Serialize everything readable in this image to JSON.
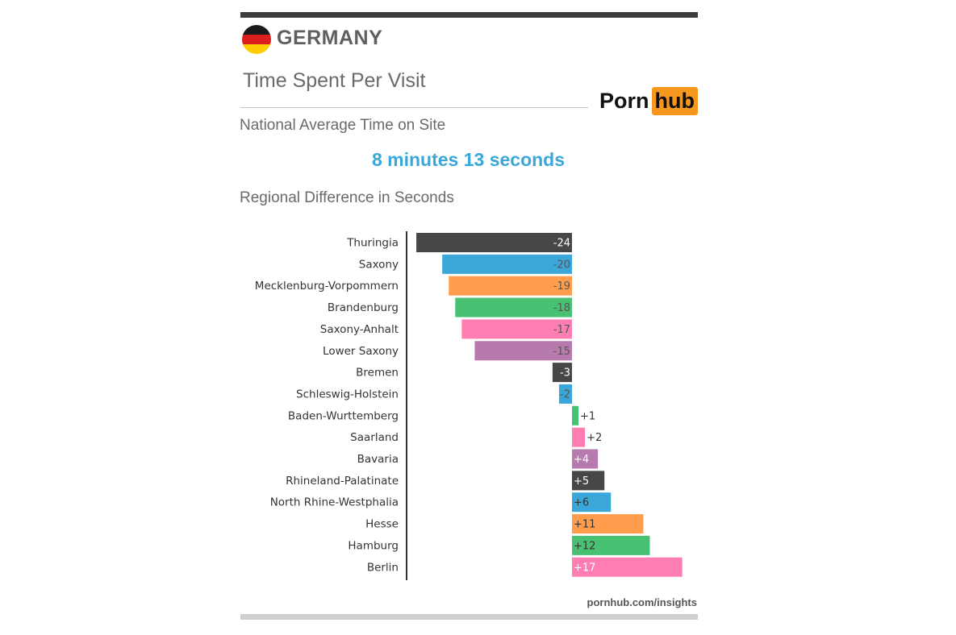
{
  "header": {
    "country": "GERMANY",
    "subtitle": "Time Spent Per Visit"
  },
  "logo": {
    "part1": "Porn",
    "part2": "hub"
  },
  "national": {
    "label": "National Average Time on Site",
    "value": "8 minutes 13 seconds"
  },
  "regional_label": "Regional Difference in Seconds",
  "footer": "pornhub.com/insights",
  "colors": {
    "flag": [
      "#1a1a1a",
      "#dd1e1e",
      "#ffce00"
    ],
    "dark": "#474747",
    "blue": "#3aa7d8",
    "orange": "#ff9d4d",
    "green": "#48c173",
    "pink": "#ff7eb2",
    "purple": "#b77aae"
  },
  "chart_data": {
    "type": "bar",
    "orientation": "horizontal",
    "categories": [
      "Thuringia",
      "Saxony",
      "Mecklenburg-Vorpommern",
      "Brandenburg",
      "Saxony-Anhalt",
      "Lower Saxony",
      "Bremen",
      "Schleswig-Holstein",
      "Baden-Wurttemberg",
      "Saarland",
      "Bavaria",
      "Rhineland-Palatinate",
      "North Rhine-Westphalia",
      "Hesse",
      "Hamburg",
      "Berlin"
    ],
    "values": [
      -24,
      -20,
      -19,
      -18,
      -17,
      -15,
      -3,
      -2,
      1,
      2,
      4,
      5,
      6,
      11,
      12,
      17
    ],
    "labels": [
      "-24",
      "-20",
      "-19",
      "-18",
      "-17",
      "-15",
      "-3",
      "-2",
      "+1",
      "+2",
      "+4",
      "+5",
      "+6",
      "+11",
      "+12",
      "+17"
    ],
    "bar_colors": [
      "#474747",
      "#3aa7d8",
      "#ff9d4d",
      "#48c173",
      "#ff7eb2",
      "#b77aae",
      "#474747",
      "#3aa7d8",
      "#48c173",
      "#ff7eb2",
      "#b77aae",
      "#474747",
      "#3aa7d8",
      "#ff9d4d",
      "#48c173",
      "#ff7eb2"
    ],
    "label_colors": [
      "#ffffff",
      "#555555",
      "#555555",
      "#555555",
      "#555555",
      "#555555",
      "#ffffff",
      "#555555",
      "#333333",
      "#333333",
      "#ffffff",
      "#ffffff",
      "#333333",
      "#333333",
      "#333333",
      "#ffffff"
    ],
    "xlim": [
      -24,
      17
    ],
    "grid": false
  }
}
